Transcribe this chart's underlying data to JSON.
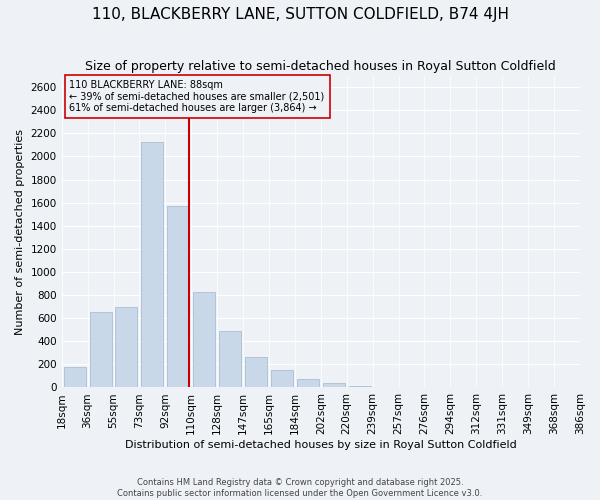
{
  "title": "110, BLACKBERRY LANE, SUTTON COLDFIELD, B74 4JH",
  "subtitle": "Size of property relative to semi-detached houses in Royal Sutton Coldfield",
  "xlabel": "Distribution of semi-detached houses by size in Royal Sutton Coldfield",
  "ylabel": "Number of semi-detached properties",
  "footer_line1": "Contains HM Land Registry data © Crown copyright and database right 2025.",
  "footer_line2": "Contains public sector information licensed under the Open Government Licence v3.0.",
  "bin_labels": [
    "18sqm",
    "36sqm",
    "55sqm",
    "73sqm",
    "92sqm",
    "110sqm",
    "128sqm",
    "147sqm",
    "165sqm",
    "184sqm",
    "202sqm",
    "220sqm",
    "239sqm",
    "257sqm",
    "276sqm",
    "294sqm",
    "312sqm",
    "331sqm",
    "349sqm",
    "368sqm",
    "386sqm"
  ],
  "bar_values": [
    175,
    650,
    700,
    2125,
    1575,
    825,
    490,
    265,
    150,
    75,
    35,
    15,
    8,
    4,
    2,
    1,
    0,
    0,
    0,
    0
  ],
  "bar_color": "#c8d8e8",
  "bar_edge_color": "#a0b8cc",
  "ylim": [
    0,
    2700
  ],
  "yticks": [
    0,
    200,
    400,
    600,
    800,
    1000,
    1200,
    1400,
    1600,
    1800,
    2000,
    2200,
    2400,
    2600
  ],
  "property_bin_index": 4,
  "property_label": "110 BLACKBERRY LANE: 88sqm",
  "annotation_line1": "← 39% of semi-detached houses are smaller (2,501)",
  "annotation_line2": "61% of semi-detached houses are larger (3,864) →",
  "vline_color": "#cc0000",
  "background_color": "#eef2f7",
  "grid_color": "#ffffff",
  "title_fontsize": 11,
  "subtitle_fontsize": 9,
  "axis_fontsize": 8,
  "tick_fontsize": 7.5
}
